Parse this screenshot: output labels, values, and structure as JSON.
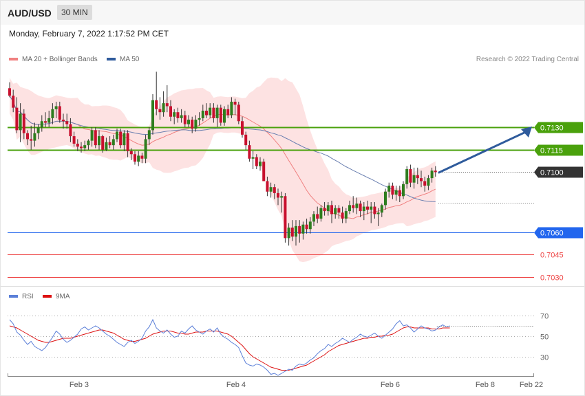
{
  "header": {
    "symbol": "AUD/USD",
    "timeframe": "30 MIN",
    "timestamp": "Monday, February 7, 2022 1:17:52 PM CET"
  },
  "legend": {
    "ma20": "MA 20 + Bollinger Bands",
    "ma50": "MA 50",
    "ma20_color": "#f08080",
    "ma50_color": "#2f5b9c",
    "rsi": "RSI",
    "ma9": "9MA",
    "rsi_color": "#5b7fd8",
    "ma9_color": "#dd1111"
  },
  "copyright": "Research © 2022 Trading Central",
  "chart_data": [
    {
      "type": "candlestick",
      "title": "AUD/USD",
      "timeframe": "30 MIN",
      "x_labels": [
        "Feb 3",
        "Feb 4",
        "Feb 6",
        "Feb 8",
        "Feb 22"
      ],
      "ylim": [
        0.7025,
        0.7176
      ],
      "current_price": 0.71,
      "levels": [
        {
          "value": 0.713,
          "label": "0.7130",
          "kind": "resistance",
          "color": "#4aa10c"
        },
        {
          "value": 0.7115,
          "label": "0.7115",
          "kind": "resistance",
          "color": "#4aa10c"
        },
        {
          "value": 0.71,
          "label": "0.7100",
          "kind": "current price",
          "color": "#333333"
        },
        {
          "value": 0.706,
          "label": "0.7060",
          "kind": "support",
          "color": "#2266ee"
        },
        {
          "value": 0.7045,
          "label": "0.7045",
          "kind": "support",
          "color": "#ee4444"
        },
        {
          "value": 0.703,
          "label": "0.7030",
          "kind": "support",
          "color": "#ee4444"
        }
      ],
      "ohlc": [
        [
          0.7156,
          0.716,
          0.715,
          0.7151
        ],
        [
          0.7151,
          0.7155,
          0.714,
          0.7143
        ],
        [
          0.7143,
          0.715,
          0.7126,
          0.7128
        ],
        [
          0.7128,
          0.7146,
          0.712,
          0.7139
        ],
        [
          0.7139,
          0.7142,
          0.7122,
          0.7126
        ],
        [
          0.7126,
          0.7128,
          0.7118,
          0.7122
        ],
        [
          0.7122,
          0.7131,
          0.7115,
          0.7121
        ],
        [
          0.7121,
          0.7133,
          0.7117,
          0.7126
        ],
        [
          0.7126,
          0.7132,
          0.7122,
          0.713
        ],
        [
          0.713,
          0.7138,
          0.7127,
          0.7134
        ],
        [
          0.7134,
          0.714,
          0.713,
          0.7133
        ],
        [
          0.7133,
          0.7141,
          0.713,
          0.7136
        ],
        [
          0.7136,
          0.7146,
          0.7132,
          0.7142
        ],
        [
          0.7142,
          0.7147,
          0.7136,
          0.7144
        ],
        [
          0.7144,
          0.7147,
          0.7133,
          0.7135
        ],
        [
          0.7135,
          0.7139,
          0.7129,
          0.7134
        ],
        [
          0.7134,
          0.7139,
          0.7129,
          0.7132
        ],
        [
          0.7132,
          0.7136,
          0.712,
          0.7124
        ],
        [
          0.7124,
          0.7127,
          0.7117,
          0.7119
        ],
        [
          0.7119,
          0.7122,
          0.7114,
          0.7117
        ],
        [
          0.7117,
          0.712,
          0.7113,
          0.7116
        ],
        [
          0.7116,
          0.7121,
          0.7114,
          0.7118
        ],
        [
          0.7118,
          0.7122,
          0.7115,
          0.7121
        ],
        [
          0.7121,
          0.713,
          0.7117,
          0.7128
        ],
        [
          0.7128,
          0.713,
          0.7116,
          0.7118
        ],
        [
          0.7118,
          0.7128,
          0.7115,
          0.7124
        ],
        [
          0.7124,
          0.7125,
          0.7113,
          0.7115
        ],
        [
          0.7115,
          0.7123,
          0.7114,
          0.712
        ],
        [
          0.712,
          0.7124,
          0.7116,
          0.7118
        ],
        [
          0.7118,
          0.7125,
          0.7115,
          0.7122
        ],
        [
          0.7122,
          0.7129,
          0.712,
          0.7127
        ],
        [
          0.7127,
          0.7129,
          0.7116,
          0.7118
        ],
        [
          0.7118,
          0.7128,
          0.7114,
          0.7126
        ],
        [
          0.7126,
          0.7128,
          0.711,
          0.7114
        ],
        [
          0.7114,
          0.7116,
          0.7108,
          0.7112
        ],
        [
          0.7112,
          0.7114,
          0.7105,
          0.7107
        ],
        [
          0.7107,
          0.7114,
          0.7104,
          0.7111
        ],
        [
          0.7111,
          0.7113,
          0.7106,
          0.7109
        ],
        [
          0.7109,
          0.7125,
          0.7106,
          0.7122
        ],
        [
          0.7122,
          0.713,
          0.7118,
          0.7128
        ],
        [
          0.7128,
          0.7152,
          0.7125,
          0.7148
        ],
        [
          0.7148,
          0.7167,
          0.7138,
          0.7142
        ],
        [
          0.7142,
          0.715,
          0.7135,
          0.714
        ],
        [
          0.714,
          0.7154,
          0.7137,
          0.7146
        ],
        [
          0.7146,
          0.7158,
          0.714,
          0.7144
        ],
        [
          0.7144,
          0.7148,
          0.7134,
          0.7137
        ],
        [
          0.7137,
          0.7142,
          0.7132,
          0.714
        ],
        [
          0.714,
          0.7143,
          0.7133,
          0.7136
        ],
        [
          0.7136,
          0.7142,
          0.7133,
          0.7138
        ],
        [
          0.7138,
          0.7141,
          0.713,
          0.7132
        ],
        [
          0.7132,
          0.7138,
          0.713,
          0.7135
        ],
        [
          0.7135,
          0.7137,
          0.7126,
          0.7129
        ],
        [
          0.7129,
          0.7138,
          0.7127,
          0.7135
        ],
        [
          0.7135,
          0.714,
          0.7131,
          0.7136
        ],
        [
          0.7136,
          0.7145,
          0.7134,
          0.7141
        ],
        [
          0.7141,
          0.7146,
          0.7136,
          0.7138
        ],
        [
          0.7138,
          0.7146,
          0.7136,
          0.7143
        ],
        [
          0.7143,
          0.7146,
          0.7133,
          0.7136
        ],
        [
          0.7136,
          0.7145,
          0.713,
          0.7143
        ],
        [
          0.7143,
          0.7145,
          0.7131,
          0.7133
        ],
        [
          0.7133,
          0.7144,
          0.7131,
          0.7142
        ],
        [
          0.7142,
          0.7145,
          0.7136,
          0.7138
        ],
        [
          0.7138,
          0.715,
          0.7136,
          0.7147
        ],
        [
          0.7147,
          0.7149,
          0.7138,
          0.7145
        ],
        [
          0.7145,
          0.7147,
          0.7132,
          0.7134
        ],
        [
          0.7134,
          0.7137,
          0.7123,
          0.7125
        ],
        [
          0.7125,
          0.7127,
          0.7115,
          0.7118
        ],
        [
          0.7118,
          0.7121,
          0.7107,
          0.7109
        ],
        [
          0.7109,
          0.7114,
          0.7102,
          0.711
        ],
        [
          0.711,
          0.7112,
          0.7102,
          0.7104
        ],
        [
          0.7104,
          0.711,
          0.7101,
          0.7107
        ],
        [
          0.7107,
          0.7109,
          0.7094,
          0.7094
        ],
        [
          0.7094,
          0.7097,
          0.7084,
          0.7087
        ],
        [
          0.7087,
          0.7093,
          0.7083,
          0.709
        ],
        [
          0.709,
          0.7092,
          0.7082,
          0.7086
        ],
        [
          0.7086,
          0.7089,
          0.7078,
          0.7083
        ],
        [
          0.7083,
          0.7087,
          0.7073,
          0.7084
        ],
        [
          0.7084,
          0.7086,
          0.7053,
          0.7056
        ],
        [
          0.7056,
          0.7066,
          0.7051,
          0.7063
        ],
        [
          0.7063,
          0.7068,
          0.7054,
          0.7057
        ],
        [
          0.7057,
          0.7068,
          0.7051,
          0.7064
        ],
        [
          0.7064,
          0.7068,
          0.7053,
          0.7059
        ],
        [
          0.7059,
          0.7067,
          0.7055,
          0.7065
        ],
        [
          0.7065,
          0.7069,
          0.7059,
          0.7062
        ],
        [
          0.7062,
          0.707,
          0.7059,
          0.7067
        ],
        [
          0.7067,
          0.7074,
          0.7064,
          0.7072
        ],
        [
          0.7072,
          0.7077,
          0.7066,
          0.7069
        ],
        [
          0.7069,
          0.7078,
          0.7067,
          0.7076
        ],
        [
          0.7076,
          0.708,
          0.7071,
          0.7074
        ],
        [
          0.7074,
          0.708,
          0.7071,
          0.7078
        ],
        [
          0.7078,
          0.7081,
          0.7066,
          0.7072
        ],
        [
          0.7072,
          0.7078,
          0.7069,
          0.7076
        ],
        [
          0.7076,
          0.7078,
          0.7069,
          0.7073
        ],
        [
          0.7073,
          0.7077,
          0.7066,
          0.7069
        ],
        [
          0.7069,
          0.7076,
          0.7066,
          0.7074
        ],
        [
          0.7074,
          0.7081,
          0.7072,
          0.7078
        ],
        [
          0.7078,
          0.7084,
          0.7073,
          0.7076
        ],
        [
          0.7076,
          0.7083,
          0.7072,
          0.7079
        ],
        [
          0.7079,
          0.7081,
          0.707,
          0.7074
        ],
        [
          0.7074,
          0.708,
          0.7068,
          0.7077
        ],
        [
          0.7077,
          0.7081,
          0.7072,
          0.7075
        ],
        [
          0.7075,
          0.708,
          0.7066,
          0.7077
        ],
        [
          0.7077,
          0.708,
          0.7069,
          0.7072
        ],
        [
          0.7072,
          0.7076,
          0.7064,
          0.7073
        ],
        [
          0.7073,
          0.7079,
          0.707,
          0.7078
        ],
        [
          0.7078,
          0.7089,
          0.7075,
          0.7087
        ],
        [
          0.7087,
          0.7093,
          0.7083,
          0.7091
        ],
        [
          0.7091,
          0.7093,
          0.7082,
          0.7085
        ],
        [
          0.7085,
          0.7091,
          0.7081,
          0.7088
        ],
        [
          0.7088,
          0.7091,
          0.708,
          0.7084
        ],
        [
          0.7084,
          0.7094,
          0.7082,
          0.7092
        ],
        [
          0.7092,
          0.7104,
          0.7089,
          0.7102
        ],
        [
          0.7102,
          0.7105,
          0.709,
          0.7093
        ],
        [
          0.7093,
          0.7103,
          0.7089,
          0.7098
        ],
        [
          0.7098,
          0.7103,
          0.7092,
          0.7096
        ],
        [
          0.7096,
          0.7101,
          0.709,
          0.7094
        ],
        [
          0.7094,
          0.7097,
          0.7087,
          0.7091
        ],
        [
          0.7091,
          0.7098,
          0.7088,
          0.7096
        ],
        [
          0.7096,
          0.7103,
          0.7093,
          0.7101
        ],
        [
          0.7101,
          0.7104,
          0.7097,
          0.71
        ]
      ],
      "annotation": "arrow up toward 0.7130"
    },
    {
      "type": "line",
      "title": "RSI",
      "y_ticks": [
        70,
        50,
        30
      ],
      "series": [
        {
          "name": "RSI",
          "values": [
            66,
            62,
            54,
            51,
            46,
            42,
            45,
            40,
            38,
            36,
            39,
            44,
            49,
            55,
            52,
            47,
            44,
            46,
            49,
            52,
            57,
            59,
            56,
            58,
            60,
            58,
            55,
            52,
            50,
            47,
            44,
            42,
            40,
            44,
            46,
            43,
            45,
            48,
            55,
            59,
            66,
            58,
            55,
            53,
            56,
            52,
            49,
            50,
            55,
            53,
            57,
            60,
            56,
            54,
            52,
            55,
            57,
            54,
            58,
            52,
            49,
            47,
            44,
            42,
            39,
            31,
            24,
            22,
            21,
            23,
            22,
            20,
            17,
            13,
            14,
            12,
            14,
            16,
            18,
            17,
            21,
            23,
            22,
            24,
            27,
            29,
            33,
            36,
            38,
            42,
            40,
            43,
            45,
            48,
            46,
            44,
            47,
            49,
            52,
            50,
            49,
            51,
            53,
            50,
            48,
            51,
            54,
            57,
            62,
            65,
            60,
            61,
            58,
            54,
            57,
            60,
            58,
            57,
            55,
            56,
            59,
            61,
            59,
            60
          ]
        },
        {
          "name": "9MA",
          "values": [
            60,
            59,
            58,
            56,
            54,
            52,
            50,
            48,
            46,
            45,
            44,
            44,
            45,
            46,
            47,
            48,
            48,
            48,
            49,
            50,
            51,
            52,
            53,
            54,
            55,
            56,
            56,
            55,
            54,
            53,
            51,
            49,
            47,
            46,
            45,
            45,
            46,
            47,
            48,
            50,
            52,
            53,
            54,
            55,
            55,
            55,
            54,
            53,
            53,
            52,
            52,
            53,
            54,
            54,
            54,
            55,
            55,
            55,
            55,
            54,
            53,
            52,
            50,
            47,
            44,
            41,
            37,
            33,
            30,
            28,
            26,
            24,
            22,
            20,
            19,
            18,
            17,
            17,
            17,
            18,
            19,
            20,
            21,
            22,
            24,
            26,
            28,
            30,
            32,
            35,
            37,
            39,
            41,
            42,
            43,
            44,
            45,
            46,
            47,
            48,
            48,
            49,
            49,
            50,
            50,
            51,
            51,
            52,
            54,
            56,
            58,
            59,
            59,
            58,
            58,
            58,
            58,
            58,
            57,
            57,
            57,
            58,
            58,
            58
          ]
        }
      ]
    }
  ]
}
